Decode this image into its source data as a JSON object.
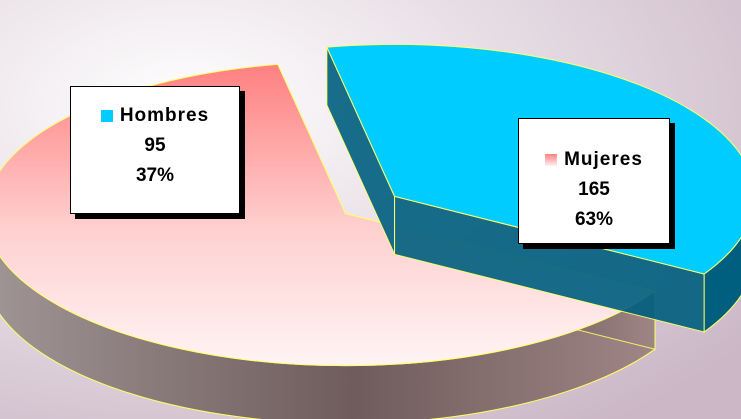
{
  "chart_data": {
    "type": "pie",
    "style": "3d-exploded",
    "title": "",
    "background_colors": {
      "light": "#ffffff",
      "dark": "#cbb7c6"
    },
    "slices": [
      {
        "label": "Hombres",
        "value": 95,
        "percent": "37%",
        "color": "#00ccff",
        "side_color": "#005f7f"
      },
      {
        "label": "Mujeres",
        "value": 165,
        "percent": "63%",
        "color": "#ff8080",
        "side_color": "#7d6565"
      }
    ]
  }
}
